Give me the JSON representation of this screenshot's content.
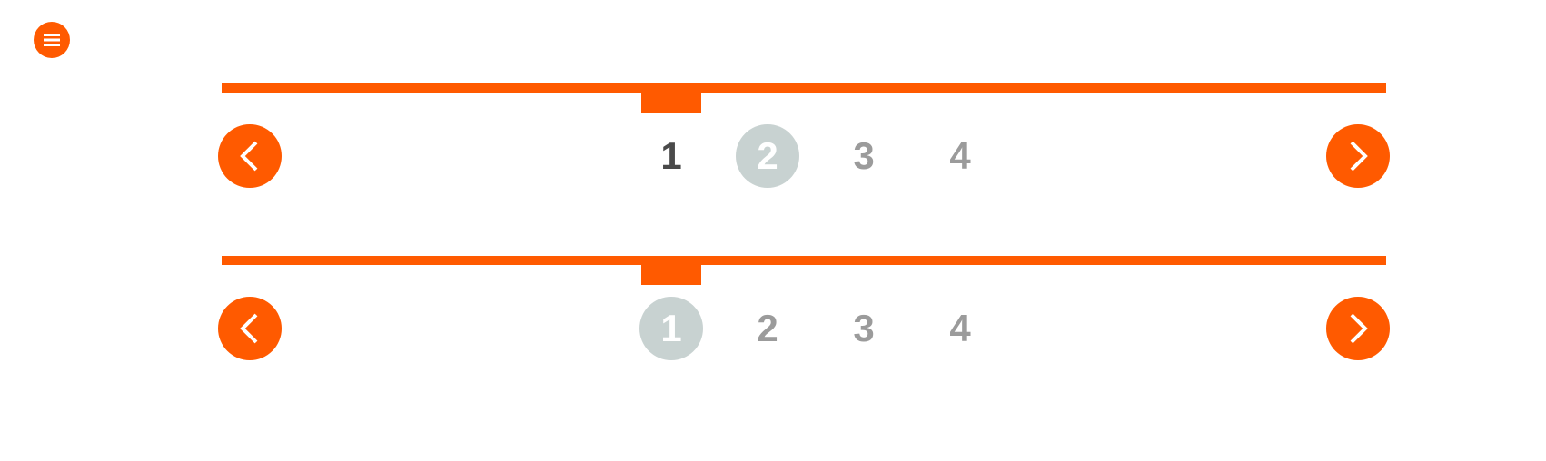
{
  "colors": {
    "accent": "#ff5a00",
    "page_active_bg": "#c8d2d1",
    "page_default": "#9b9b9b",
    "page_visited": "#4a4a4a",
    "icon_fg": "#ffffff"
  },
  "menu": {
    "icon": "hamburger-menu-icon"
  },
  "pagers": [
    {
      "current_page": 2,
      "prev_icon": "chevron-left-icon",
      "next_icon": "chevron-right-icon",
      "pages": [
        "1",
        "2",
        "3",
        "4"
      ]
    },
    {
      "current_page": 1,
      "prev_icon": "chevron-left-icon",
      "next_icon": "chevron-right-icon",
      "pages": [
        "1",
        "2",
        "3",
        "4"
      ]
    }
  ]
}
